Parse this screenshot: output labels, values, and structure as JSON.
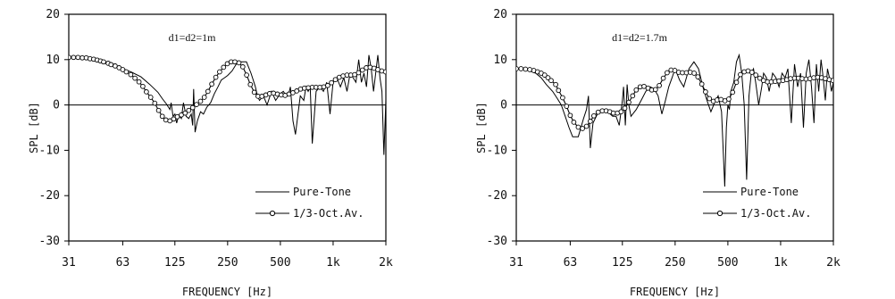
{
  "chart_data": [
    {
      "type": "line",
      "annotation": "d1=d2=1m",
      "xlabel": "FREQUENCY [Hz]",
      "ylabel": "SPL [dB]",
      "xscale": "log",
      "xlim": [
        31,
        2000
      ],
      "ylim": [
        -30,
        20
      ],
      "xticks": [
        31,
        63,
        125,
        250,
        500,
        1000,
        2000
      ],
      "xtick_labels": [
        "31",
        "63",
        "125",
        "250",
        "500",
        "1k",
        "2k"
      ],
      "yticks": [
        20,
        10,
        0,
        -10,
        -20,
        -30
      ],
      "ytick_labels": [
        "20",
        "10",
        "0",
        "-10",
        "-20",
        "-30"
      ],
      "zero_line": true,
      "legend_position": "bottom-right",
      "series": [
        {
          "name": "Pure-Tone",
          "style": "line",
          "x": [
            31,
            35,
            40,
            45,
            50,
            56,
            63,
            71,
            80,
            90,
            100,
            106,
            112,
            117,
            119,
            122,
            125,
            128,
            130,
            133,
            136,
            140,
            145,
            150,
            155,
            158,
            160,
            163,
            168,
            175,
            182,
            190,
            200,
            210,
            220,
            230,
            240,
            250,
            265,
            280,
            300,
            320,
            340,
            350,
            360,
            370,
            380,
            400,
            420,
            445,
            470,
            500,
            520,
            540,
            555,
            570,
            590,
            610,
            630,
            650,
            680,
            700,
            720,
            740,
            760,
            800,
            840,
            880,
            920,
            960,
            1000,
            1050,
            1100,
            1150,
            1200,
            1250,
            1300,
            1350,
            1400,
            1450,
            1500,
            1550,
            1600,
            1650,
            1700,
            1750,
            1800,
            1850,
            1900,
            1950,
            2000
          ],
          "y": [
            10.5,
            10.4,
            10.2,
            9.8,
            9.2,
            8.6,
            8,
            7.2,
            6.2,
            4.5,
            2.8,
            1.4,
            0.2,
            -1,
            0.5,
            -2.5,
            -2,
            -4,
            -3,
            -2.5,
            -3,
            0.5,
            -2.5,
            -3,
            -2,
            -4.5,
            3.5,
            -6,
            -3.5,
            -1.5,
            -2,
            -0.5,
            0.5,
            2.5,
            4,
            5.5,
            6,
            6.5,
            7.5,
            9,
            9.5,
            9.5,
            7,
            5.5,
            4,
            2,
            1,
            2,
            0,
            3,
            1,
            2.5,
            3,
            2,
            2,
            4,
            -3.5,
            -6.5,
            -2,
            2,
            1,
            4,
            3,
            4,
            -8.5,
            3,
            4,
            3,
            5,
            -2,
            5,
            6,
            4,
            6,
            3,
            7,
            6,
            5,
            10,
            5,
            7,
            4,
            11,
            8,
            3,
            7,
            11,
            6,
            3,
            -11,
            1
          ]
        },
        {
          "name": "1/3-Oct.Av.",
          "style": "line-markers",
          "x": [
            31,
            33,
            35,
            37,
            39,
            41,
            43,
            45,
            47,
            49,
            52,
            54,
            57,
            60,
            63,
            66,
            70,
            74,
            78,
            82,
            86,
            91,
            96,
            101,
            106,
            111,
            117,
            123,
            129,
            136,
            143,
            150,
            158,
            166,
            175,
            184,
            193,
            203,
            214,
            225,
            237,
            249,
            262,
            275,
            290,
            305,
            321,
            337,
            355,
            373,
            392,
            413,
            434,
            457,
            481,
            506,
            532,
            560,
            589,
            620,
            652,
            686,
            722,
            760,
            799,
            841,
            885,
            931,
            979,
            1030,
            1084,
            1140,
            1200,
            1262,
            1328,
            1397,
            1470,
            1547,
            1627,
            1712,
            1800,
            1895,
            1990
          ],
          "y": [
            10.5,
            10.5,
            10.5,
            10.4,
            10.4,
            10.2,
            10.1,
            9.9,
            9.7,
            9.5,
            9.2,
            8.9,
            8.6,
            8.2,
            7.8,
            7.3,
            6.7,
            5.9,
            5.1,
            4.1,
            2.9,
            1.7,
            0.4,
            -1.2,
            -2.5,
            -3.3,
            -3.5,
            -3.1,
            -2.6,
            -2.2,
            -1.8,
            -1.2,
            -0.6,
            0.1,
            0.8,
            1.7,
            3,
            4.6,
            6.1,
            7.3,
            8.3,
            9.1,
            9.5,
            9.5,
            9.3,
            8.4,
            6.6,
            4.5,
            2.8,
            1.9,
            1.9,
            2.2,
            2.5,
            2.6,
            2.4,
            2.2,
            2.1,
            2.4,
            2.7,
            3.1,
            3.5,
            3.7,
            3.8,
            3.9,
            3.9,
            3.9,
            4,
            4.3,
            4.9,
            5.6,
            6.1,
            6.4,
            6.6,
            6.6,
            6.7,
            7.1,
            7.7,
            8.2,
            8.3,
            8.1,
            7.8,
            7.5,
            7.3
          ]
        }
      ]
    },
    {
      "type": "line",
      "annotation": "d1=d2=1.7m",
      "xlabel": "FREQUENCY [Hz]",
      "ylabel": "SPL [dB]",
      "xscale": "log",
      "xlim": [
        31,
        2000
      ],
      "ylim": [
        -30,
        20
      ],
      "xticks": [
        31,
        63,
        125,
        250,
        500,
        1000,
        2000
      ],
      "xtick_labels": [
        "31",
        "63",
        "125",
        "250",
        "500",
        "1k",
        "2k"
      ],
      "yticks": [
        20,
        10,
        0,
        -10,
        -20,
        -30
      ],
      "ytick_labels": [
        "20",
        "10",
        "0",
        "-10",
        "-20",
        "-30"
      ],
      "zero_line": true,
      "legend_position": "bottom-right",
      "series": [
        {
          "name": "Pure-Tone",
          "style": "line",
          "x": [
            31,
            34,
            37,
            40,
            43,
            46,
            50,
            53,
            56,
            59,
            62,
            65,
            70,
            75,
            78,
            80,
            82,
            85,
            90,
            95,
            100,
            110,
            115,
            120,
            125,
            127,
            130,
            133,
            136,
            140,
            150,
            160,
            170,
            180,
            190,
            200,
            210,
            220,
            230,
            240,
            250,
            265,
            280,
            300,
            320,
            340,
            360,
            380,
            400,
            420,
            440,
            460,
            480,
            490,
            500,
            510,
            520,
            540,
            560,
            580,
            600,
            620,
            640,
            660,
            680,
            700,
            720,
            750,
            780,
            800,
            830,
            860,
            900,
            940,
            980,
            1020,
            1060,
            1100,
            1150,
            1200,
            1250,
            1300,
            1350,
            1400,
            1450,
            1500,
            1550,
            1600,
            1650,
            1700,
            1750,
            1800,
            1850,
            1900,
            1950,
            2000
          ],
          "y": [
            8,
            7.8,
            7.5,
            7,
            6,
            4.5,
            3,
            1.5,
            0,
            -2.5,
            -5,
            -7,
            -7,
            -3,
            -1,
            2,
            -9.5,
            -4,
            -2,
            -1,
            -1,
            -2.5,
            -2.5,
            -4.5,
            1,
            4,
            -4.5,
            4.5,
            0,
            -2.5,
            -1,
            1,
            3,
            4,
            3.5,
            2,
            -2,
            1,
            4,
            6,
            8,
            5.5,
            4,
            8,
            9.5,
            8,
            4,
            1,
            -1.5,
            0.5,
            2,
            -1.5,
            -18,
            -5,
            0,
            -1,
            3,
            5,
            9.5,
            11,
            7,
            0,
            -16.5,
            2,
            7,
            8,
            5,
            0,
            4,
            7,
            6,
            3,
            7,
            6,
            4,
            7,
            6,
            8,
            -4,
            9,
            4,
            7,
            -5,
            7,
            10,
            4,
            -4,
            9,
            3,
            10,
            6,
            1,
            8,
            6,
            3,
            5
          ]
        },
        {
          "name": "1/3-Oct.Av.",
          "style": "line-markers",
          "x": [
            31,
            33,
            35,
            37,
            39,
            41,
            43,
            45,
            47,
            49,
            52,
            54,
            57,
            60,
            63,
            66,
            70,
            74,
            78,
            82,
            86,
            91,
            96,
            101,
            106,
            111,
            117,
            123,
            129,
            136,
            143,
            150,
            158,
            166,
            175,
            184,
            193,
            203,
            214,
            225,
            237,
            249,
            262,
            275,
            290,
            305,
            321,
            337,
            355,
            373,
            392,
            413,
            434,
            457,
            481,
            506,
            532,
            560,
            589,
            620,
            652,
            686,
            722,
            760,
            799,
            841,
            885,
            931,
            979,
            1030,
            1084,
            1140,
            1200,
            1262,
            1328,
            1397,
            1470,
            1547,
            1627,
            1712,
            1800,
            1895,
            1990
          ],
          "y": [
            8,
            8,
            7.9,
            7.8,
            7.6,
            7.3,
            7,
            6.6,
            6,
            5.4,
            4.5,
            3.2,
            1.6,
            -0.3,
            -2.3,
            -3.8,
            -4.9,
            -5.2,
            -4.7,
            -3.6,
            -2.4,
            -1.6,
            -1.3,
            -1.3,
            -1.5,
            -1.8,
            -1.8,
            -1.5,
            -0.7,
            0.6,
            2,
            3.3,
            4,
            4.1,
            3.7,
            3.3,
            3.4,
            4.3,
            5.9,
            7.1,
            7.7,
            7.6,
            7.2,
            7.1,
            7.1,
            7.2,
            7,
            6.2,
            4.6,
            2.9,
            1.4,
            0.8,
            1.1,
            1.2,
            0.9,
            1.3,
            2.8,
            5,
            6.7,
            7.3,
            7.5,
            7.2,
            6.6,
            5.9,
            5.4,
            5.1,
            5.1,
            5.2,
            5.3,
            5.4,
            5.6,
            5.8,
            5.9,
            5.9,
            5.8,
            5.7,
            5.8,
            6,
            6.1,
            6,
            5.8,
            5.6,
            5.4
          ]
        }
      ]
    }
  ]
}
